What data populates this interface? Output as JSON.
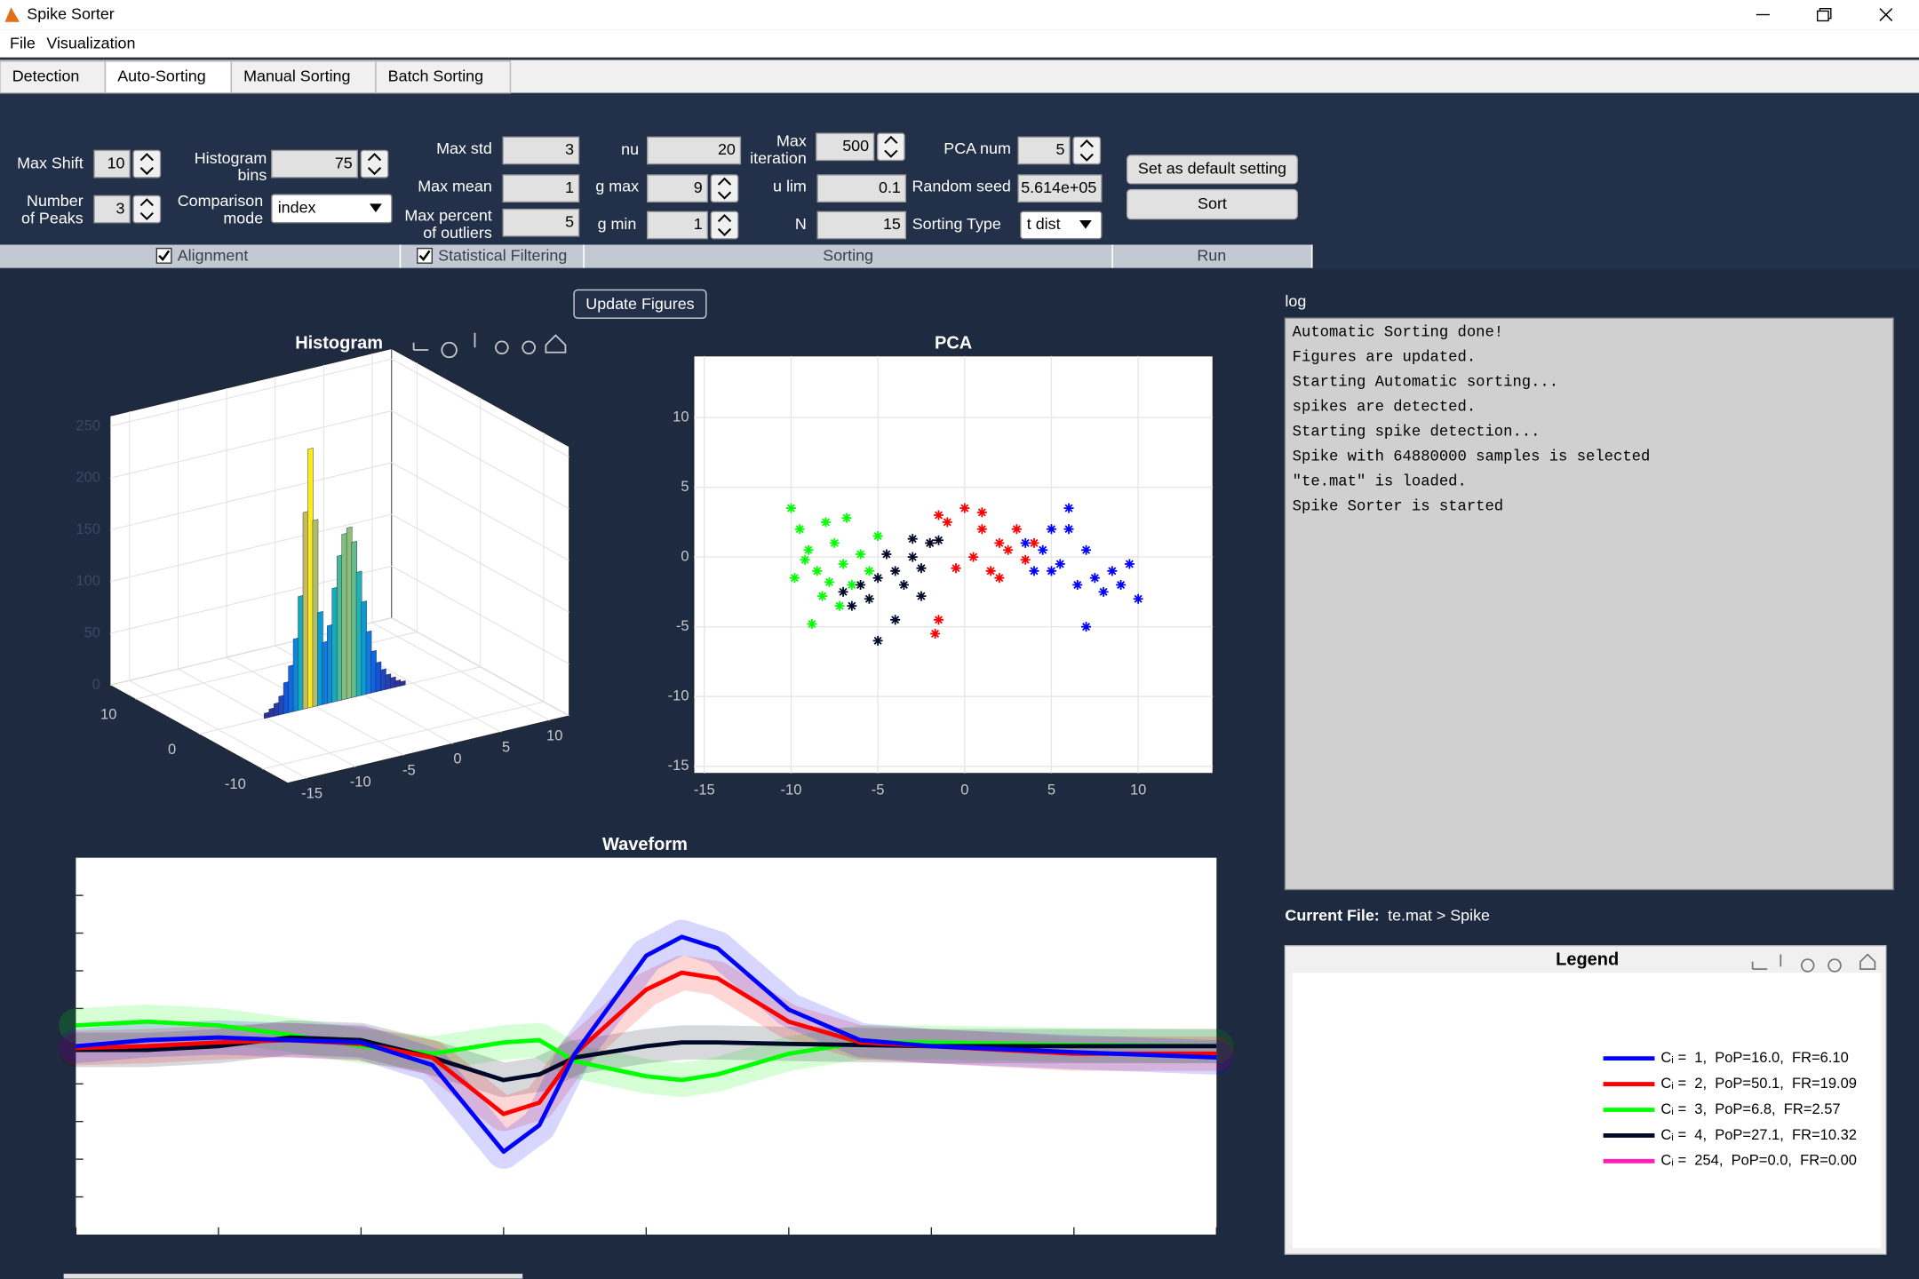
{
  "window": {
    "title": "Spike Sorter"
  },
  "menu": [
    "File",
    "Visualization"
  ],
  "tabs": [
    "Detection",
    "Auto-Sorting",
    "Manual Sorting",
    "Batch Sorting"
  ],
  "controls": [
    {
      "label": [
        "Max Shift"
      ],
      "value": 10
    },
    {
      "label": [
        "Number",
        "of Peaks"
      ],
      "value": 3
    },
    {
      "label": [
        "Histogram",
        "bins"
      ],
      "value": 75
    },
    {
      "label": [
        "Comparison",
        "mode"
      ],
      "value": "index"
    },
    {
      "label": [
        "Max std"
      ],
      "value": 3
    },
    {
      "label": [
        "Max mean"
      ],
      "value": 1
    },
    {
      "label": [
        "Max percent",
        "of outliers"
      ],
      "value": 5
    },
    {
      "label": [
        "nu"
      ],
      "value": 20
    },
    {
      "label": [
        "g max"
      ],
      "value": 9
    },
    {
      "label": [
        "g min"
      ],
      "value": 1
    },
    {
      "label": [
        "Max",
        "iteration"
      ],
      "value": 500
    },
    {
      "label": [
        "u lim"
      ],
      "value": 0.1
    },
    {
      "label": [
        "N"
      ],
      "value": 15
    },
    {
      "label": [
        "PCA num"
      ],
      "value": 5
    },
    {
      "label": [
        "Random seed"
      ],
      "value": "5.614e+05"
    },
    {
      "label": [
        "Sorting Type"
      ],
      "value": "t dist"
    }
  ],
  "buttons": [
    "Set as default setting",
    "Sort"
  ],
  "groups": [
    {
      "label": "Alignment",
      "checked": true
    },
    {
      "label": "Statistical Filtering",
      "checked": true
    },
    {
      "label": "Sorting"
    },
    {
      "label": "Run"
    }
  ],
  "update_button": "Update Figures",
  "chart_data": [
    {
      "type": "histogram3d",
      "title": "Histogram",
      "x": [
        -10,
        -9.5,
        -9,
        -8.5,
        -8,
        -7.5,
        -7,
        -6.5,
        -6,
        -5.5,
        -5,
        -4.5,
        -4,
        -3.5,
        -3,
        -2.5,
        -2,
        -1.5,
        -1,
        -0.5,
        0,
        0.5,
        1,
        1.5,
        2,
        2.5,
        3,
        3.5,
        4
      ],
      "values": [
        5,
        8,
        12,
        18,
        30,
        45,
        70,
        110,
        190,
        250,
        180,
        90,
        60,
        75,
        110,
        140,
        160,
        165,
        150,
        120,
        90,
        60,
        40,
        28,
        20,
        14,
        10,
        6,
        4
      ],
      "xlim": [
        -17,
        12
      ],
      "ylim": [
        -14,
        14
      ],
      "zlim": [
        0,
        260
      ],
      "xticks": [
        -15,
        -10,
        -5,
        0,
        5,
        10
      ],
      "yticks": [
        -10,
        0,
        10
      ],
      "zticks": [
        0,
        50,
        100,
        150,
        200,
        250
      ],
      "colormap": [
        "#352a87",
        "#0f5cdd",
        "#1481d6",
        "#06a4ca",
        "#2eb7a4",
        "#87bf77",
        "#d1bb59",
        "#fec832",
        "#f9fb0e"
      ],
      "grid": true
    },
    {
      "type": "scatter",
      "title": "PCA",
      "series": [
        {
          "color": "#00ff00",
          "x": [
            -10,
            -9.5,
            -9,
            -8.5,
            -9.8,
            -8,
            -7.5,
            -7,
            -6.5,
            -7.2,
            -8.8,
            -6,
            -5.5,
            -8.2,
            -6.8,
            -5,
            -9.2,
            -7.8
          ],
          "values": [
            3.5,
            2,
            0.5,
            -1,
            -1.5,
            2.5,
            1,
            -0.5,
            -2,
            -3.5,
            -4.8,
            0.2,
            -1,
            -2.8,
            2.8,
            1.5,
            -0.2,
            -1.8
          ]
        },
        {
          "color": "#ff0000",
          "x": [
            -2,
            -1,
            0,
            1,
            2,
            3,
            0.5,
            -0.5,
            1.5,
            2.5,
            3.5,
            -1.5,
            1,
            -1.5,
            -1.7,
            2,
            4
          ],
          "values": [
            1,
            2.5,
            3.5,
            2,
            1,
            2,
            0,
            -0.8,
            -1,
            0.5,
            -0.2,
            3,
            3.2,
            -4.5,
            -5.5,
            -1.5,
            1
          ]
        },
        {
          "color": "#0000ff",
          "x": [
            3.5,
            4.5,
            5,
            6,
            6,
            7,
            7.5,
            8,
            9,
            9.5,
            10,
            6.5,
            5,
            4,
            7,
            8.5,
            5.5
          ],
          "values": [
            1,
            0.5,
            -1,
            2,
            3.5,
            0.5,
            -1.5,
            -2.5,
            -2,
            -0.5,
            -3,
            -2,
            2,
            -1,
            -5,
            -1,
            -0.5
          ]
        },
        {
          "color": "#000a28",
          "x": [
            -6,
            -5,
            -4,
            -3,
            -2,
            -1.5,
            -4.5,
            -5.5,
            -6.5,
            -5,
            -4,
            -3.5,
            -2.5,
            -7,
            -2.5,
            -3
          ],
          "values": [
            -2,
            -1.5,
            -1,
            0,
            1,
            1.2,
            0.2,
            -3,
            -3.5,
            -6,
            -4.5,
            -2,
            -0.8,
            -2.5,
            -2.8,
            1.3
          ]
        }
      ],
      "xlim": [
        -15.6,
        14.3
      ],
      "ylim": [
        -15.5,
        14.4
      ],
      "xticks": [
        -15,
        -10,
        -5,
        0,
        5,
        10
      ],
      "yticks": [
        -15,
        -10,
        -5,
        0,
        5,
        10
      ],
      "grid": true
    },
    {
      "type": "line",
      "title": "Waveform",
      "x": [
        0,
        0.5,
        1,
        1.5,
        2,
        2.5,
        3,
        3.25,
        3.5,
        4,
        4.25,
        4.5,
        5,
        5.5,
        6,
        7,
        8
      ],
      "series": [
        {
          "color": "#00ff00",
          "values": [
            0.55,
            0.65,
            0.55,
            0.3,
            0,
            -0.2,
            0.1,
            0.16,
            -0.4,
            -0.8,
            -0.9,
            -0.75,
            -0.2,
            0.1,
            0.1,
            0.03,
            0
          ]
        },
        {
          "color": "#000a28",
          "values": [
            -0.1,
            -0.1,
            0,
            0.23,
            0.16,
            -0.3,
            -0.9,
            -0.75,
            -0.3,
            0,
            0.1,
            0.1,
            0.06,
            0.03,
            0,
            0,
            0
          ]
        },
        {
          "color": "#ff0000",
          "values": [
            -0.05,
            0,
            0.1,
            0.16,
            0.06,
            -0.3,
            -1.8,
            -1.5,
            -0.2,
            1.5,
            1.95,
            1.8,
            0.65,
            0.1,
            0,
            -0.2,
            -0.2
          ]
        },
        {
          "color": "#0000ff",
          "values": [
            0,
            0.16,
            0.23,
            0.16,
            0.1,
            -0.5,
            -2.8,
            -2.1,
            -0.2,
            2.4,
            2.9,
            2.6,
            0.97,
            0.16,
            0,
            -0.16,
            -0.3
          ]
        }
      ],
      "xlim": [
        0,
        8
      ],
      "ylim": [
        -5,
        5
      ],
      "xticks": [
        0,
        1,
        2,
        3,
        4,
        5,
        6,
        7,
        8
      ],
      "yticks": [
        -4,
        -3,
        -2,
        -1,
        0,
        1,
        2,
        3,
        4
      ]
    }
  ],
  "log": {
    "label": "log",
    "lines": [
      "Automatic Sorting done!",
      "Figures are updated.",
      "Starting Automatic sorting...",
      "spikes are detected.",
      "Starting spike detection...",
      "Spike with 64880000 samples is selected",
      "\"te.mat\" is loaded.",
      "Spike Sorter is started"
    ]
  },
  "current_file": {
    "label": "Current File:",
    "value": "te.mat > Spike"
  },
  "legend": {
    "title": "Legend",
    "entries": [
      {
        "text": "Cᵢ =  1,  PoP=16.0,  FR=6.10",
        "color": "#0000ff"
      },
      {
        "text": "Cᵢ =  2,  PoP=50.1,  FR=19.09",
        "color": "#ff0000"
      },
      {
        "text": "Cᵢ =  3,  PoP=6.8,  FR=2.57",
        "color": "#00ff00"
      },
      {
        "text": "Cᵢ =  4,  PoP=27.1,  FR=10.32",
        "color": "#000a28"
      },
      {
        "text": "Cᵢ =  254,  PoP=0.0,  FR=0.00",
        "color": "#ff1fb4"
      }
    ]
  }
}
